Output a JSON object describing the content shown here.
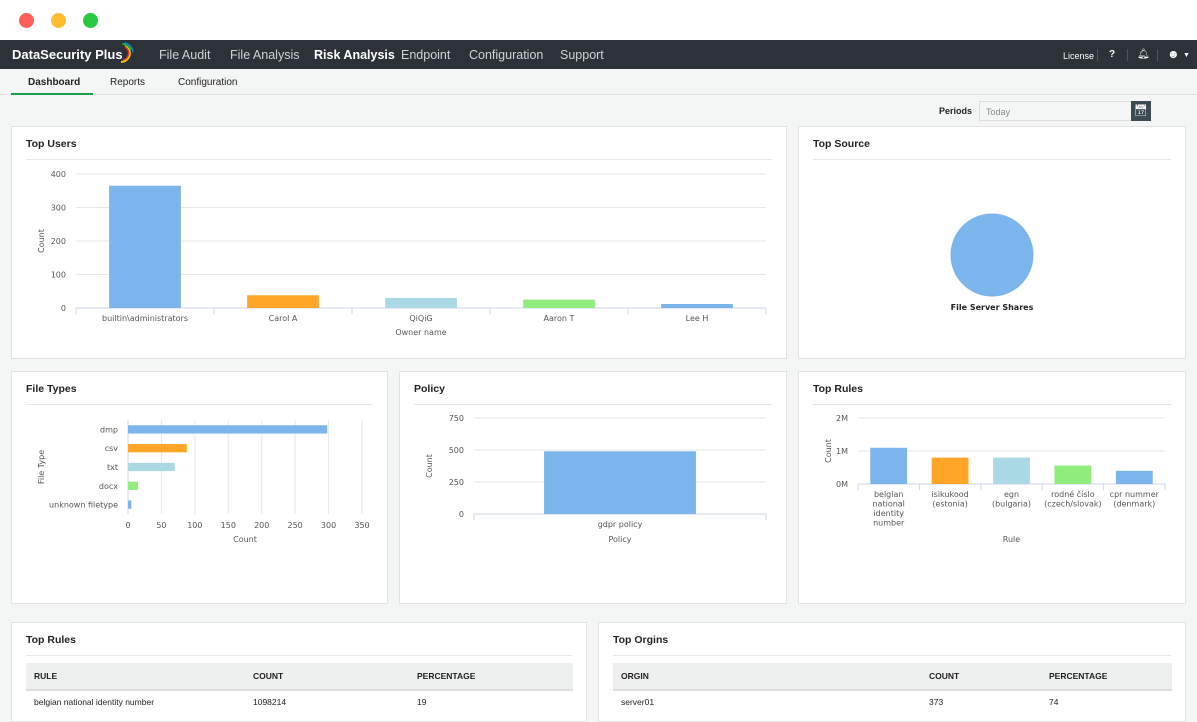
{
  "window": {
    "controls": {
      "close": "#ff5f57",
      "minimize": "#febc2e",
      "maximize": "#28c840"
    }
  },
  "nav": {
    "brand": "DataSecurity Plus",
    "items": [
      "File Audit",
      "File Analysis",
      "Risk Analysis",
      "Endpoint",
      "Configuration",
      "Support"
    ],
    "active": "Risk Analysis",
    "license": "License",
    "help": "?",
    "icons": [
      "bell-icon",
      "user-icon",
      "caret-down-icon"
    ]
  },
  "subnav": {
    "tabs": [
      "Dashboard",
      "Reports",
      "Configuration"
    ],
    "active": "Dashboard"
  },
  "periods": {
    "label": "Periods",
    "value": "Today",
    "icon": "calendar-icon"
  },
  "cards": {
    "top_users": "Top Users",
    "top_source": "Top Source",
    "file_types": "File Types",
    "policy": "Policy",
    "top_rules": "Top Rules",
    "top_rules_table": "Top Rules",
    "top_origins": "Top Orgins"
  },
  "chart_data": [
    {
      "id": "users",
      "type": "bar",
      "categories": [
        "builtin\\administrators",
        "Carol A",
        "QiQiG",
        "Aaron T",
        "Lee H"
      ],
      "values": [
        365,
        38,
        30,
        25,
        12
      ],
      "colors": [
        "#7cb5ec",
        "#ffa629",
        "#aad8e4",
        "#90ed7d",
        "#7cb5ec"
      ],
      "xlabel": "Owner name",
      "ylabel": "Count",
      "ylim": [
        0,
        400
      ],
      "ticks": [
        "0",
        "100",
        "200",
        "300",
        "400"
      ]
    },
    {
      "id": "source",
      "type": "pie",
      "categories": [
        "File Server Shares"
      ],
      "values": [
        100
      ],
      "colors": [
        "#7cb5ec"
      ]
    },
    {
      "id": "filetypes",
      "type": "bar",
      "orientation": "horizontal",
      "categories": [
        "dmp",
        "csv",
        "txt",
        "docx",
        "unknown filetype"
      ],
      "values": [
        298,
        88,
        70,
        15,
        5
      ],
      "colors": [
        "#7cb5ec",
        "#ffa629",
        "#aad8e4",
        "#90ed7d",
        "#7cb5ec"
      ],
      "xlabel": "Count",
      "ylabel": "File Type",
      "xlim": [
        0,
        350
      ],
      "ticks": [
        "0",
        "50",
        "100",
        "150",
        "200",
        "250",
        "300",
        "350"
      ]
    },
    {
      "id": "policy",
      "type": "bar",
      "categories": [
        "gdpr policy"
      ],
      "values": [
        490
      ],
      "colors": [
        "#7cb5ec"
      ],
      "xlabel": "Policy",
      "ylabel": "Count",
      "ylim": [
        0,
        750
      ],
      "ticks": [
        "0",
        "250",
        "500",
        "750"
      ]
    },
    {
      "id": "rules",
      "type": "bar",
      "categories": [
        [
          "belgian",
          "national",
          "identity",
          "number"
        ],
        [
          "isikukood",
          "(estonia)"
        ],
        [
          "egn",
          "(bulgaria)"
        ],
        [
          "rodné číslo",
          "(czech/slovak)"
        ],
        [
          "cpr nummer",
          "(denmark)"
        ]
      ],
      "values": [
        1098214,
        800000,
        800000,
        560000,
        400000
      ],
      "colors": [
        "#7cb5ec",
        "#ffa629",
        "#aad8e4",
        "#90ed7d",
        "#7cb5ec"
      ],
      "xlabel": "Rule",
      "ylabel": "Count",
      "ylim": [
        0,
        2000000
      ],
      "ticks": [
        "0M",
        "1M",
        "2M"
      ]
    }
  ],
  "rules_table": {
    "headers": [
      "RULE",
      "COUNT",
      "PERCENTAGE"
    ],
    "rows": [
      [
        "belgian national identity number",
        "1098214",
        "19"
      ]
    ]
  },
  "origins_table": {
    "headers": [
      "ORGIN",
      "COUNT",
      "PERCENTAGE"
    ],
    "rows": [
      [
        "server01",
        "373",
        "74"
      ]
    ]
  }
}
